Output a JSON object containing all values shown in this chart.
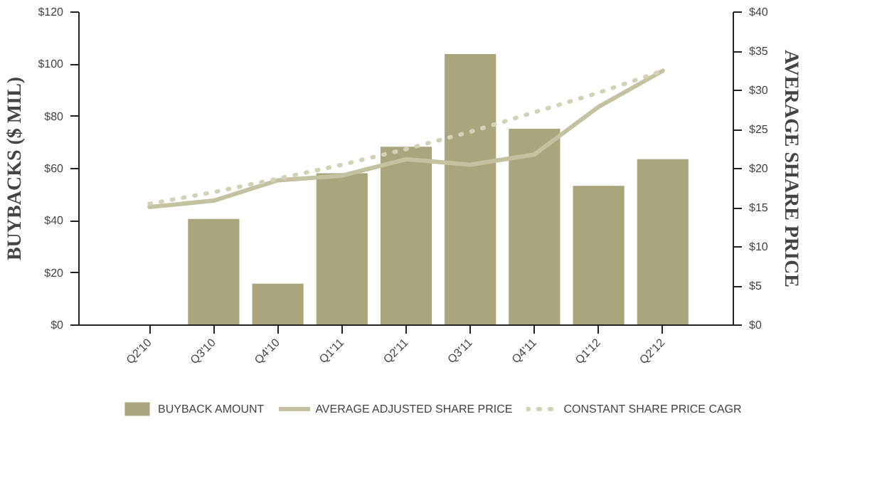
{
  "chart_data": {
    "type": "bar",
    "categories": [
      "Q2'10",
      "Q3'10",
      "Q4'10",
      "Q1'11",
      "Q2'11",
      "Q3'11",
      "Q4'11",
      "Q1'12",
      "Q2'12"
    ],
    "ylabel": "BUYBACKS ($ MIL)",
    "y2label": "AVERAGE SHARE PRICE",
    "grid": false,
    "legend": "bottom",
    "ylim": [
      0,
      120
    ],
    "yticks": [
      {
        "value": 0,
        "label": "$0"
      },
      {
        "value": 20,
        "label": "$20"
      },
      {
        "value": 40,
        "label": "$40"
      },
      {
        "value": 60,
        "label": "$60"
      },
      {
        "value": 80,
        "label": "$80"
      },
      {
        "value": 100,
        "label": "$100"
      },
      {
        "value": 120,
        "label": "$120"
      }
    ],
    "y2lim": [
      0,
      40
    ],
    "y2ticks": [
      {
        "value": 0,
        "label": "$0"
      },
      {
        "value": 5,
        "label": "$5"
      },
      {
        "value": 10,
        "label": "$10"
      },
      {
        "value": 15,
        "label": "$15"
      },
      {
        "value": 20,
        "label": "$20"
      },
      {
        "value": 25,
        "label": "$25"
      },
      {
        "value": 30,
        "label": "$30"
      },
      {
        "value": 35,
        "label": "$35"
      },
      {
        "value": 40,
        "label": "$40"
      }
    ],
    "series": [
      {
        "name": "BUYBACK AMOUNT",
        "color": "#a9a57c",
        "values": [
          null,
          40.7,
          15.9,
          58.2,
          68.4,
          103.9,
          75.3,
          53.4,
          63.6
        ]
      },
      {
        "name": "AVERAGE ADJUSTED SHARE PRICE",
        "type": "line",
        "axis": "y2",
        "color": "#c4c2a0",
        "line_style": "solid",
        "values": [
          15.1,
          15.9,
          18.5,
          19.1,
          21.2,
          20.5,
          21.8,
          27.9,
          32.5
        ]
      },
      {
        "name": "CONSTANT SHARE PRICE CAGR",
        "type": "line",
        "axis": "y2",
        "color": "#d3d2b6",
        "line_style": "dotted",
        "values": [
          15.5,
          17.0,
          18.7,
          20.5,
          22.5,
          24.7,
          27.2,
          29.7,
          32.5
        ]
      }
    ]
  }
}
